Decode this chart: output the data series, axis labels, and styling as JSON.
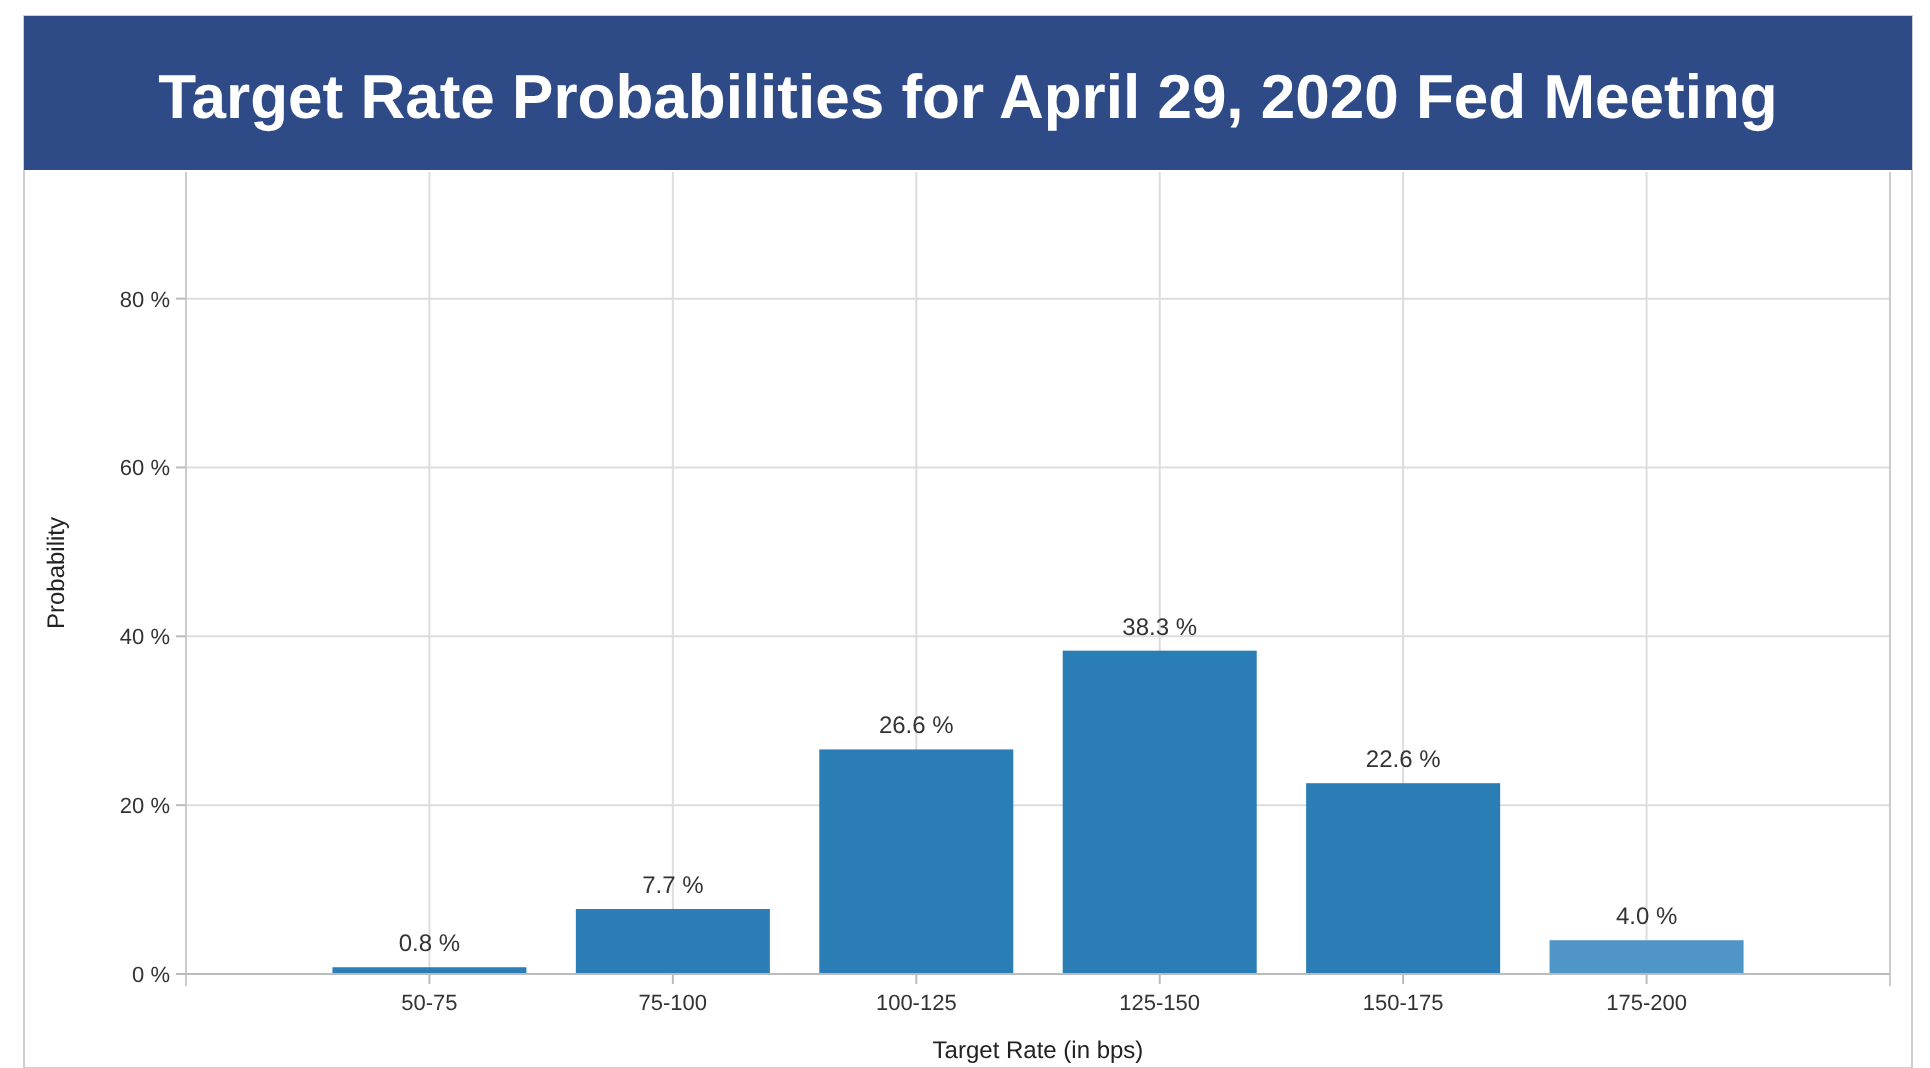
{
  "chart_data": {
    "type": "bar",
    "title": "Target Rate Probabilities for April 29, 2020 Fed Meeting",
    "xlabel": "Target Rate (in bps)",
    "ylabel": "Probability",
    "categories": [
      "50-75",
      "75-100",
      "100-125",
      "125-150",
      "150-175",
      "175-200"
    ],
    "values": [
      0.8,
      7.7,
      26.6,
      38.3,
      22.6,
      4.0
    ],
    "value_labels": [
      "0.8 %",
      "7.7 %",
      "26.6 %",
      "38.3 %",
      "22.6 %",
      "4.0 %"
    ],
    "colors": [
      "#2a7db5",
      "#2a7db5",
      "#2a7db5",
      "#2a7db5",
      "#2a7db5",
      "#4f95c8"
    ],
    "ylim": [
      0,
      95
    ],
    "yticks": [
      {
        "value": 0,
        "label": "0 %"
      },
      {
        "value": 20,
        "label": "20 %"
      },
      {
        "value": 40,
        "label": "40 %"
      },
      {
        "value": 60,
        "label": "60 %"
      },
      {
        "value": 80,
        "label": "80 %"
      }
    ],
    "grid": true
  }
}
